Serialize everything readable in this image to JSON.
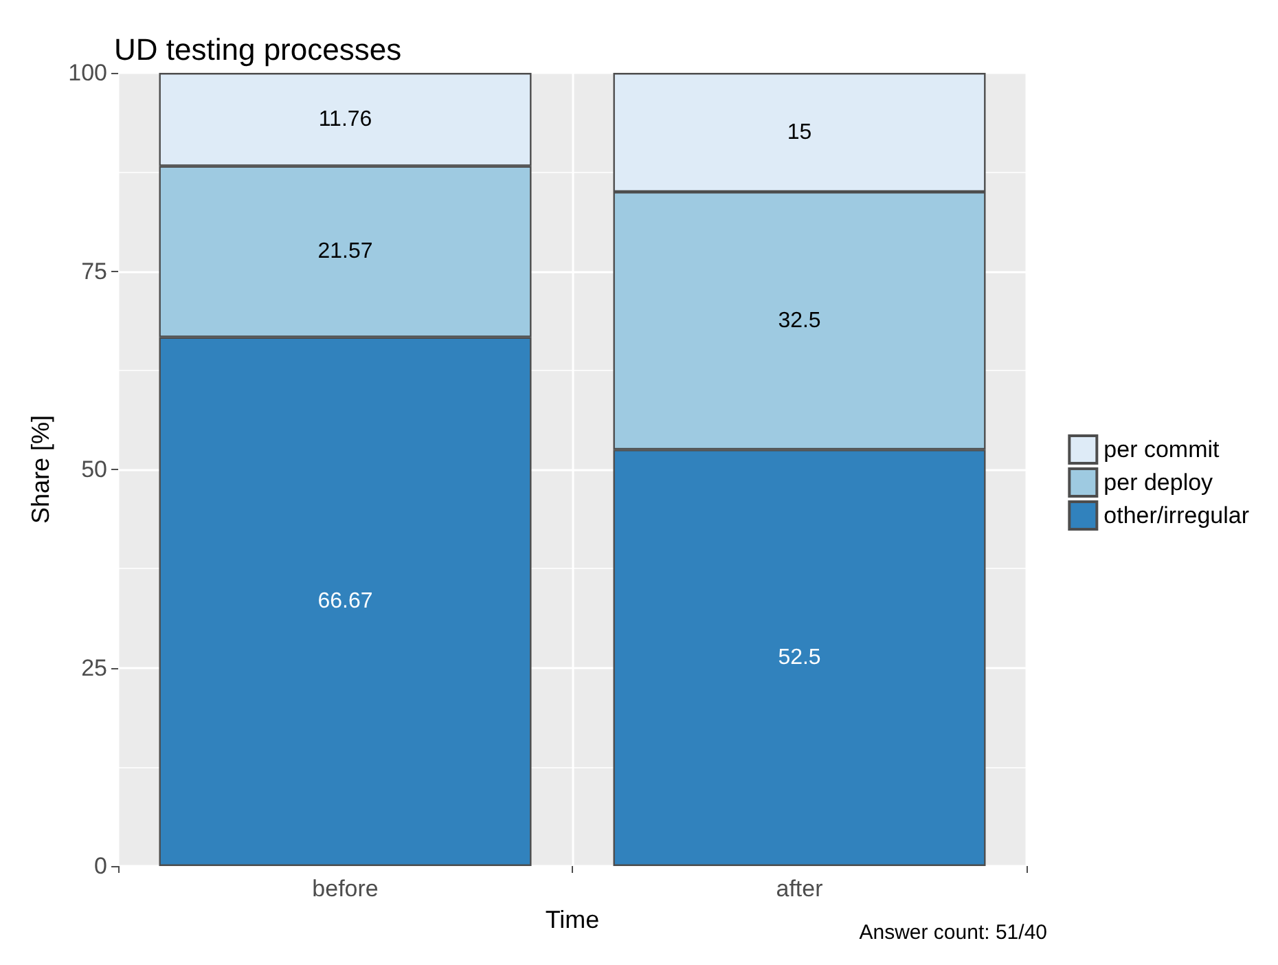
{
  "chart_data": {
    "type": "bar",
    "title": "UD testing processes",
    "xlabel": "Time",
    "ylabel": "Share [%]",
    "categories": [
      "before",
      "after"
    ],
    "stacked": true,
    "series": [
      {
        "name": "other/irregular",
        "color": "#3182bd",
        "values": [
          66.67,
          52.5
        ]
      },
      {
        "name": "per deploy",
        "color": "#9ecae1",
        "values": [
          21.57,
          32.5
        ]
      },
      {
        "name": "per commit",
        "color": "#deebf7",
        "values": [
          11.76,
          15
        ]
      }
    ],
    "ylim": [
      0,
      100
    ],
    "yticks": [
      0,
      25,
      50,
      75,
      100
    ],
    "grid": true,
    "legend": "right",
    "data_labels": true,
    "annotations": [
      "Answer count: 51/40"
    ]
  }
}
